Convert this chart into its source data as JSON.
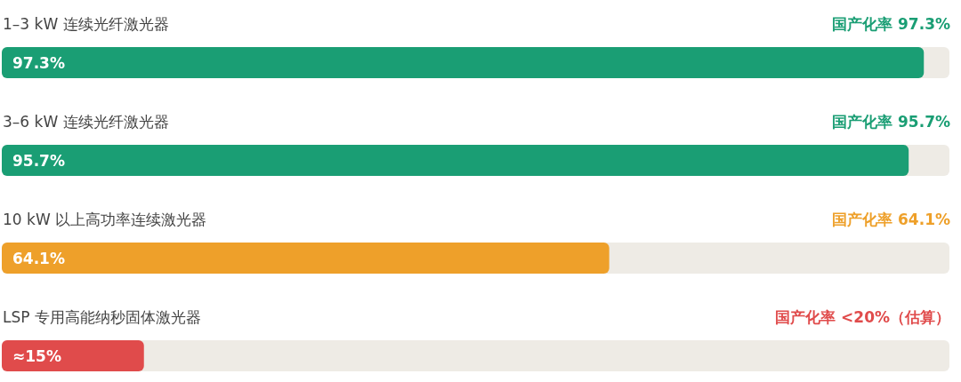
{
  "chart_data": {
    "type": "bar",
    "orientation": "horizontal",
    "categories": [
      "1–3 kW 连续光纤激光器",
      "3–6 kW 连续光纤激光器",
      "10 kW 以上高功率连续激光器",
      "LSP 专用高能纳秒固体激光器"
    ],
    "values": [
      97.3,
      95.7,
      64.1,
      15
    ],
    "colors": [
      "#1a9e74",
      "#1a9e74",
      "#eea02a",
      "#e04b4b"
    ],
    "value_labels": [
      "97.3%",
      "95.7%",
      "64.1%",
      "≈15%"
    ],
    "xlim": [
      0,
      100
    ],
    "annotations": [
      "国产化率 97.3%",
      "国产化率 95.7%",
      "国产化率 64.1%",
      "国产化率 <20%（估算）"
    ]
  }
}
